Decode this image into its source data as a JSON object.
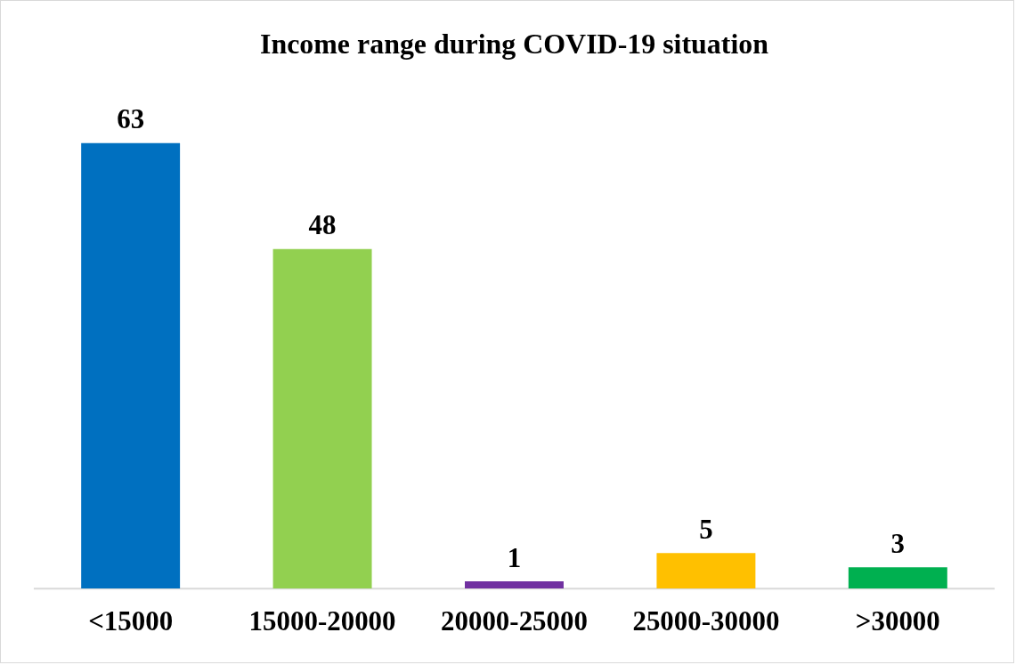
{
  "chart_data": {
    "type": "bar",
    "title": "Income range during COVID-19 situation",
    "categories": [
      "<15000",
      "15000-20000",
      "20000-25000",
      "25000-30000",
      ">30000"
    ],
    "values": [
      63,
      48,
      1,
      5,
      3
    ],
    "colors": [
      "#0070c0",
      "#92d050",
      "#7030a0",
      "#ffc000",
      "#00b050"
    ],
    "data_labels": true,
    "tick_labels": "x",
    "grid": false,
    "legend": false
  }
}
